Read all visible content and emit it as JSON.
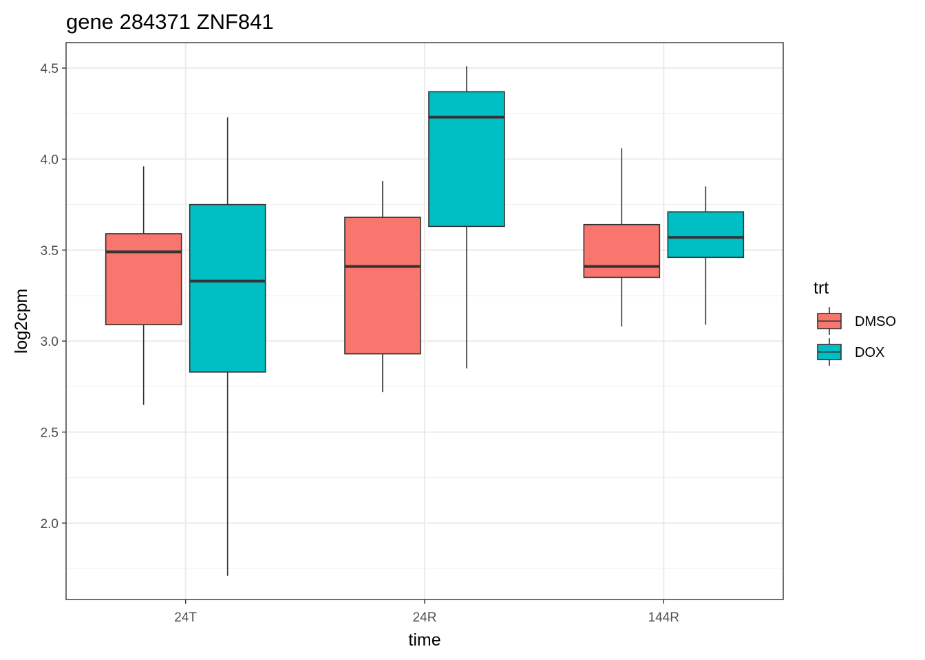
{
  "chart_data": {
    "type": "boxplot",
    "title": "gene 284371 ZNF841",
    "xlabel": "time",
    "ylabel": "log2cpm",
    "categories": [
      "24T",
      "24R",
      "144R"
    ],
    "y_ticks": [
      "2.0",
      "2.5",
      "3.0",
      "3.5",
      "4.0",
      "4.5"
    ],
    "ylim": [
      1.58,
      4.64
    ],
    "grid": true,
    "legend": {
      "title": "trt",
      "position": "right",
      "entries": [
        "DMSO",
        "DOX"
      ]
    },
    "series": [
      {
        "name": "DMSO",
        "color": "#F8766D",
        "boxes": [
          {
            "category": "24T",
            "min": 2.65,
            "q1": 3.09,
            "median": 3.49,
            "q3": 3.59,
            "max": 3.96
          },
          {
            "category": "24R",
            "min": 2.72,
            "q1": 2.93,
            "median": 3.41,
            "q3": 3.68,
            "max": 3.88
          },
          {
            "category": "144R",
            "min": 3.08,
            "q1": 3.35,
            "median": 3.41,
            "q3": 3.64,
            "max": 4.06
          }
        ]
      },
      {
        "name": "DOX",
        "color": "#00BFC4",
        "boxes": [
          {
            "category": "24T",
            "min": 1.71,
            "q1": 2.83,
            "median": 3.33,
            "q3": 3.75,
            "max": 4.23
          },
          {
            "category": "24R",
            "min": 2.85,
            "q1": 3.63,
            "median": 4.23,
            "q3": 4.37,
            "max": 4.51
          },
          {
            "category": "144R",
            "min": 3.09,
            "q1": 3.46,
            "median": 3.57,
            "q3": 3.71,
            "max": 3.85
          }
        ]
      }
    ]
  }
}
